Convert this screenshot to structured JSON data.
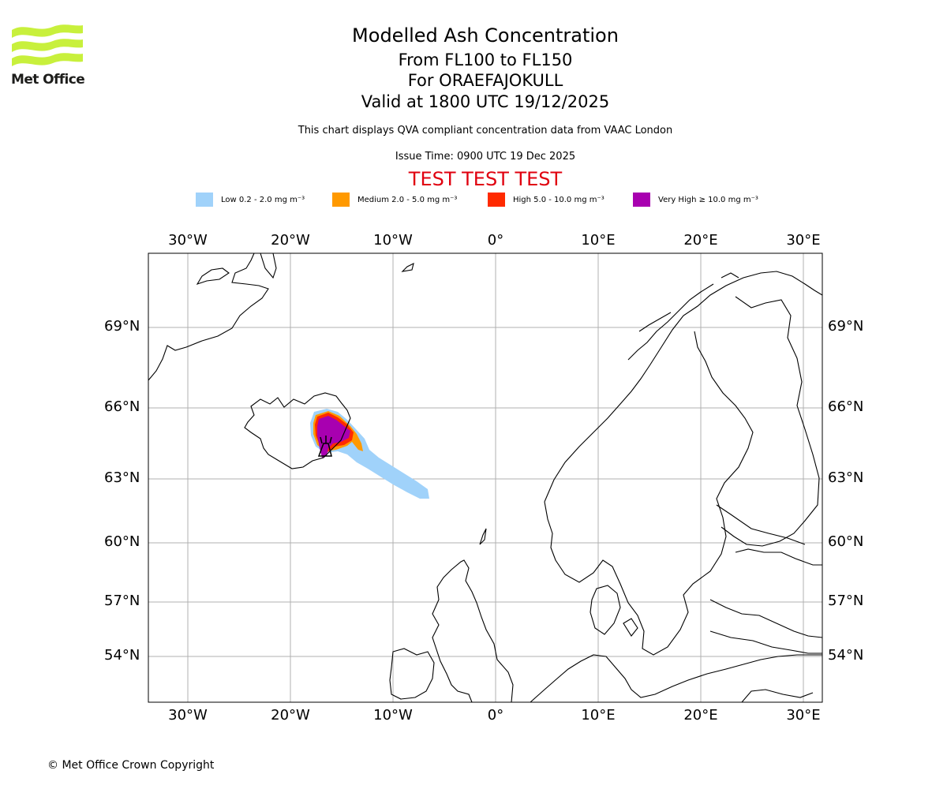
{
  "header": {
    "title": "Modelled Ash Concentration",
    "levels": "From FL100 to FL150",
    "volcano": "For ORAEFAJOKULL",
    "valid": "Valid at 1800 UTC 19/12/2025",
    "description": "This chart displays QVA compliant concentration data from VAAC London",
    "issue_time": "Issue Time: 0900 UTC 19 Dec 2025",
    "test_banner": "TEST TEST TEST"
  },
  "logo": {
    "name": "Met Office",
    "color": "#c8f03c"
  },
  "legend": [
    {
      "label": "Low 0.2 - 2.0 mg m⁻³",
      "color": "#a0d2fa"
    },
    {
      "label": "Medium 2.0 - 5.0 mg m⁻³",
      "color": "#ff9900"
    },
    {
      "label": "High 5.0 - 10.0 mg m⁻³",
      "color": "#ff2a00"
    },
    {
      "label": "Very High ≥ 10.0 mg m⁻³",
      "color": "#a800b0"
    }
  ],
  "map": {
    "x_ticks_top": [
      "30°W",
      "20°W",
      "10°W",
      "0°",
      "10°E",
      "20°E",
      "30°E"
    ],
    "x_ticks_bottom": [
      "30°W",
      "20°W",
      "10°W",
      "0°",
      "10°E",
      "20°E",
      "30°E"
    ],
    "y_ticks_left": [
      "69°N",
      "66°N",
      "63°N",
      "60°N",
      "57°N",
      "54°N"
    ],
    "y_ticks_right": [
      "69°N",
      "66°N",
      "63°N",
      "60°N",
      "57°N",
      "54°N"
    ]
  },
  "footer": {
    "copyright": "© Met Office Crown Copyright"
  }
}
